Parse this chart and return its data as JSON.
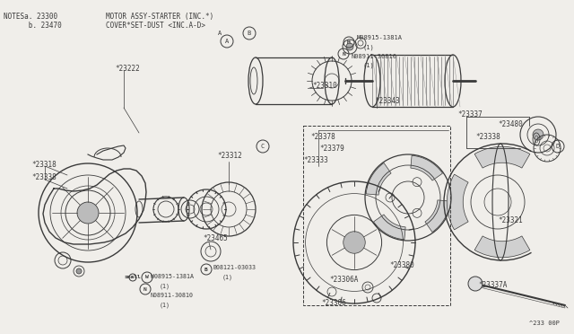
{
  "bg_color": "#f0eeea",
  "line_color": "#3a3a3a",
  "text_color": "#3a3a3a",
  "fig_width": 6.4,
  "fig_height": 3.72,
  "dpi": 100,
  "notes_line1": "NOTESa. 23300",
  "notes_line2": "      b. 23470",
  "header_line1": "MOTOR ASSY-STARTER (INC.*)",
  "header_line2": "COVER*SET-DUST <INC.A-D>",
  "footer_ref": "^233 00P"
}
